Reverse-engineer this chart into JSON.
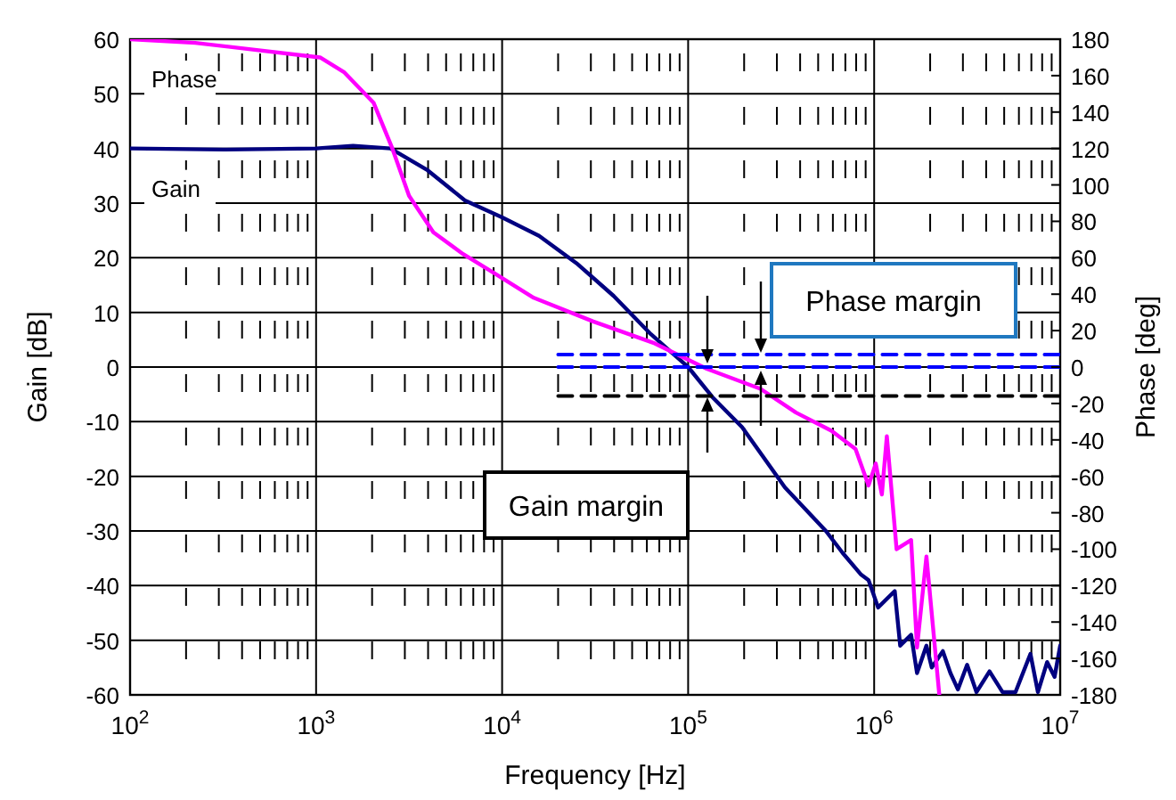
{
  "chart_data": {
    "type": "line",
    "xlabel": "Frequency [Hz]",
    "ylabel": "Gain [dB]",
    "y2label": "Phase [deg]",
    "log": "x",
    "grid": true,
    "legend": false,
    "marker": "none",
    "line_style": "solid",
    "xlim": [
      100,
      10000000
    ],
    "xticks": [
      {
        "value": 100,
        "label": "10$^{2}$"
      },
      {
        "value": 1000,
        "label": "10$^{3}$"
      },
      {
        "value": 10000,
        "label": "10$^{4}$"
      },
      {
        "value": 100000,
        "label": "10$^{5}$"
      },
      {
        "value": 1000000,
        "label": "10$^{6}$"
      },
      {
        "value": 10000000,
        "label": "10$^{7}$"
      }
    ],
    "ylim": [
      -60,
      60
    ],
    "yticks": [
      -60,
      -50,
      -40,
      -30,
      -20,
      -10,
      0,
      10,
      20,
      30,
      40,
      50,
      60
    ],
    "y2lim": [
      -180,
      180
    ],
    "y2ticks": [
      -180,
      -160,
      -140,
      -120,
      -100,
      -80,
      -60,
      -40,
      -20,
      0,
      20,
      40,
      60,
      80,
      100,
      120,
      140,
      160,
      180
    ],
    "series": [
      {
        "name": "Gain",
        "color": "#000080",
        "x": [
          100,
          316,
          1000,
          1580,
          2510,
          3980,
          6310,
          10000,
          15800,
          25100,
          39800,
          50100,
          63100,
          79400,
          100000,
          135000,
          195000,
          331000,
          550000,
          676000,
          851000,
          933000,
          1050000,
          1290000,
          1380000,
          1580000,
          1700000,
          1910000,
          2040000,
          2340000,
          2570000,
          2820000,
          3160000,
          3550000,
          4170000,
          4900000,
          5750000,
          6920000,
          7590000,
          8510000,
          9330000,
          10000000
        ],
        "values": [
          40,
          39.8,
          40,
          40.5,
          40,
          36,
          30.5,
          27.4,
          24,
          19,
          13,
          9.5,
          6,
          3,
          0,
          -5.5,
          -11,
          -22,
          -30,
          -34,
          -38,
          -39,
          -44,
          -41,
          -51,
          -49,
          -56,
          -51,
          -55,
          -52,
          -56,
          -59,
          -54.5,
          -59.5,
          -55.7,
          -59.5,
          -59.5,
          -52.5,
          -59.5,
          -54,
          -56.7,
          -51
        ]
      },
      {
        "name": "Phase",
        "color": "#ff00ff",
        "axis": "y2",
        "x": [
          100,
          224,
          1050,
          1410,
          2040,
          2570,
          3160,
          4270,
          6170,
          8910,
          14800,
          30900,
          66100,
          126000,
          245000,
          380000,
          589000,
          794000,
          933000,
          1020000,
          1100000,
          1170000,
          1320000,
          1580000,
          1700000,
          1910000,
          2240000
        ],
        "values": [
          180,
          178,
          170,
          162,
          145,
          120,
          94,
          74,
          62,
          52,
          38,
          25,
          13,
          -1,
          -12,
          -25,
          -35,
          -45,
          -65,
          -53,
          -70,
          -38,
          -100,
          -95,
          -154,
          -104,
          -180
        ]
      },
      {
        "color": "#0000ff",
        "line_style": "dashed",
        "x": [
          20000,
          10000000
        ],
        "values": [
          2.3,
          2.3
        ]
      },
      {
        "color": "#0000ff",
        "line_style": "dashed",
        "x": [
          20000,
          10000000
        ],
        "values": [
          0,
          0
        ]
      },
      {
        "color": "#000000",
        "line_style": "dashed",
        "x": [
          20000,
          10000000
        ],
        "values": [
          -5.3,
          -5.3
        ]
      }
    ],
    "annotations": [
      "Phase margin",
      "Gain margin"
    ]
  }
}
